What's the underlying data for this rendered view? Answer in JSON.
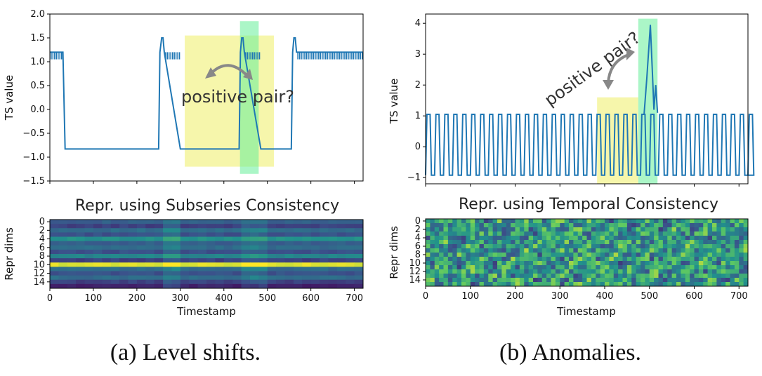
{
  "chart_data": [
    {
      "panel": "a",
      "type": "line",
      "ylabel": "TS value",
      "xlim": [
        0,
        720
      ],
      "ylim": [
        -1.5,
        2.0
      ],
      "y_ticks": [
        "2.0",
        "1.5",
        "1.0",
        "0.5",
        "0.0",
        "−0.5",
        "−1.0",
        "−1.5"
      ],
      "series": [
        {
          "color": "#1f77b4",
          "x": [
            0,
            30,
            35,
            250,
            253,
            257,
            260,
            263,
            300,
            435,
            438,
            441,
            444,
            447,
            485,
            555,
            558,
            561,
            564,
            567,
            720
          ],
          "y": [
            1.2,
            1.2,
            -0.83,
            -0.83,
            1.2,
            1.5,
            1.5,
            1.2,
            -0.83,
            -0.83,
            1.2,
            1.5,
            1.5,
            1.2,
            -0.83,
            -0.83,
            1.2,
            1.5,
            1.5,
            1.2,
            1.2
          ]
        }
      ],
      "highlights": [
        {
          "name": "yellow-window",
          "x": [
            310,
            515
          ],
          "y": [
            -1.2,
            1.55
          ],
          "color": "#eeee66"
        },
        {
          "name": "green-window",
          "x": [
            437,
            480
          ],
          "y": [
            -1.35,
            1.85
          ],
          "color": "#66ee99"
        }
      ],
      "annotation": "positive pair?"
    },
    {
      "panel": "a",
      "type": "heatmap",
      "title": "Repr. using Subseries Consistency",
      "xlabel": "Timestamp",
      "ylabel": "Repr dims",
      "xlim": [
        0,
        720
      ],
      "rows": 16,
      "x_ticks": [
        0,
        100,
        200,
        300,
        400,
        500,
        600,
        700
      ],
      "y_ticks": [
        0,
        2,
        4,
        6,
        8,
        10,
        12,
        14
      ],
      "row_values": [
        0.3,
        0.2,
        0.35,
        0.25,
        0.5,
        0.3,
        0.35,
        0.25,
        0.45,
        0.2,
        0.95,
        0.35,
        0.25,
        0.35,
        0.2,
        0.1
      ]
    },
    {
      "panel": "b",
      "type": "line",
      "ylabel": "TS value",
      "xlim": [
        0,
        720
      ],
      "ylim": [
        -1.2,
        4.3
      ],
      "y_ticks": [
        "4",
        "3",
        "2",
        "1",
        "0",
        "−1"
      ],
      "series": [
        {
          "color": "#1f77b4",
          "period": 20,
          "high": 1.05,
          "low": -0.92,
          "spike_x": 502,
          "spike_y": 3.95
        }
      ],
      "highlights": [
        {
          "name": "yellow-window",
          "x": [
            383,
            475
          ],
          "y": [
            -1.2,
            1.6
          ],
          "color": "#eeee66"
        },
        {
          "name": "green-window",
          "x": [
            475,
            518
          ],
          "y": [
            -1.2,
            4.15
          ],
          "color": "#66ee99"
        }
      ],
      "annotation": "positive pair?"
    },
    {
      "panel": "b",
      "type": "heatmap",
      "title": "Repr. using Temporal Consistency",
      "xlabel": "Timestamp",
      "ylabel": "Repr dims",
      "xlim": [
        0,
        720
      ],
      "rows": 16,
      "x_ticks": [
        0,
        100,
        200,
        300,
        400,
        500,
        600,
        700
      ],
      "y_ticks": [
        0,
        2,
        4,
        6,
        8,
        10,
        12,
        14
      ]
    }
  ],
  "captions": {
    "a": "(a) Level shifts.",
    "b": "(b) Anomalies."
  }
}
